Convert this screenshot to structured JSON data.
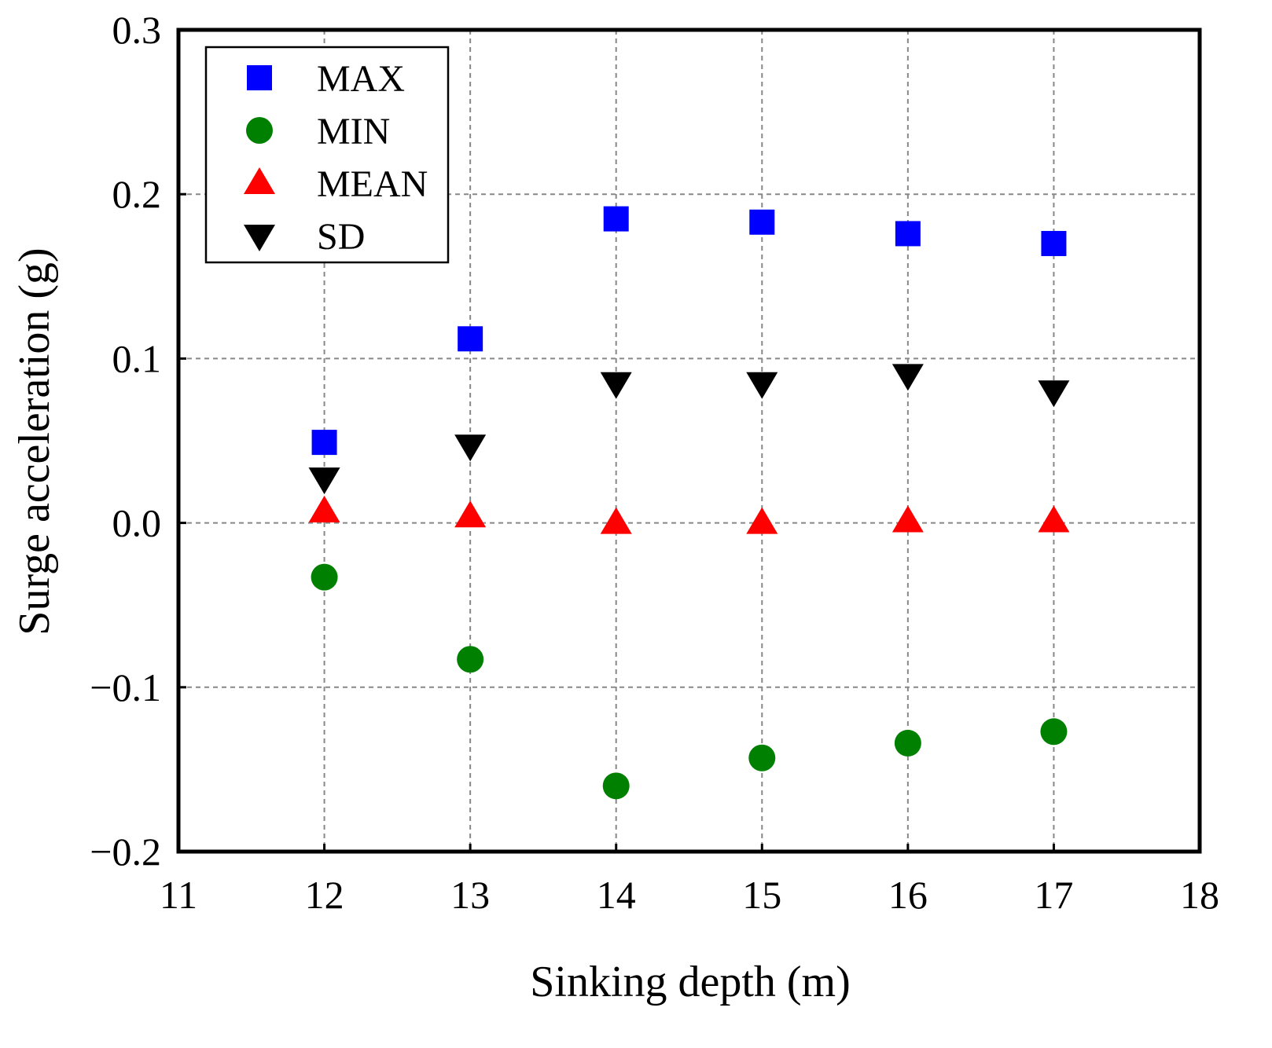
{
  "chart_data": {
    "type": "scatter",
    "title": "",
    "xlabel": "Sinking depth (m)",
    "ylabel": "Surge acceleration (g)",
    "xlim": [
      11,
      18
    ],
    "ylim": [
      -0.2,
      0.3
    ],
    "xticks": [
      11,
      12,
      13,
      14,
      15,
      16,
      17,
      18
    ],
    "yticks": [
      -0.2,
      -0.1,
      0.0,
      0.1,
      0.2,
      0.3
    ],
    "xtick_labels": [
      "11",
      "12",
      "13",
      "14",
      "15",
      "16",
      "17",
      "18"
    ],
    "ytick_labels": [
      "−0.2",
      "−0.1",
      "0.0",
      "0.1",
      "0.2",
      "0.3"
    ],
    "grid": true,
    "legend_position": "top-left",
    "x": [
      12,
      13,
      14,
      15,
      16,
      17
    ],
    "series": [
      {
        "name": "MAX",
        "marker": "square",
        "color": "#0000ff",
        "values": [
          0.049,
          0.112,
          0.185,
          0.183,
          0.176,
          0.17
        ]
      },
      {
        "name": "MIN",
        "marker": "circle",
        "color": "#008000",
        "values": [
          -0.033,
          -0.083,
          -0.16,
          -0.143,
          -0.134,
          -0.127
        ]
      },
      {
        "name": "MEAN",
        "marker": "triangle-up",
        "color": "#ff0000",
        "values": [
          0.007,
          0.004,
          0.0,
          0.0,
          0.001,
          0.001
        ]
      },
      {
        "name": "SD",
        "marker": "triangle-down",
        "color": "#000000",
        "values": [
          0.027,
          0.047,
          0.085,
          0.085,
          0.09,
          0.08
        ]
      }
    ]
  }
}
